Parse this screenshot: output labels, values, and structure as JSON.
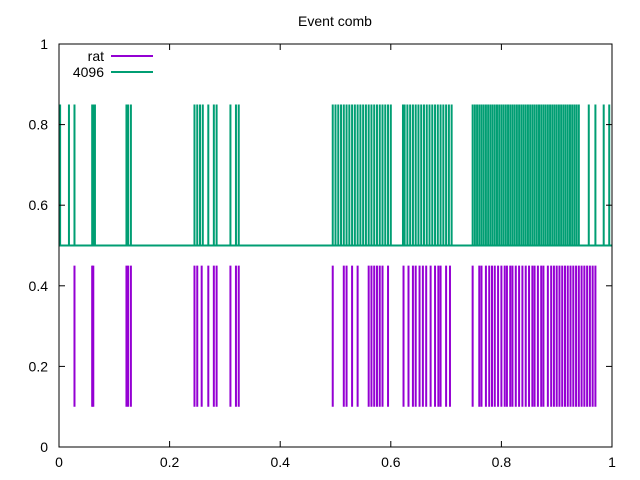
{
  "chart_data": {
    "type": "event-comb",
    "title": "Event comb",
    "xlim": [
      0,
      1
    ],
    "ylim": [
      0,
      1
    ],
    "grid": false,
    "legend_position": "top-left",
    "x_ticks": [
      "0",
      "0.2",
      "0.4",
      "0.6",
      "0.8",
      "1"
    ],
    "y_ticks": [
      "0",
      "0.2",
      "0.4",
      "0.6",
      "0.8",
      "1"
    ],
    "series": [
      {
        "name": "rat",
        "color": "#9400d3",
        "baseline": 0.1,
        "height": 0.45,
        "events": [
          0.028,
          0.06,
          0.062,
          0.122,
          0.125,
          0.13,
          0.245,
          0.25,
          0.258,
          0.27,
          0.28,
          0.285,
          0.31,
          0.32,
          0.325,
          0.495,
          0.515,
          0.52,
          0.53,
          0.54,
          0.56,
          0.565,
          0.57,
          0.575,
          0.58,
          0.585,
          0.595,
          0.623,
          0.632,
          0.64,
          0.645,
          0.652,
          0.658,
          0.664,
          0.672,
          0.68,
          0.686,
          0.69,
          0.7,
          0.707,
          0.748,
          0.76,
          0.764,
          0.772,
          0.778,
          0.783,
          0.788,
          0.794,
          0.8,
          0.806,
          0.81,
          0.816,
          0.82,
          0.826,
          0.832,
          0.838,
          0.844,
          0.85,
          0.856,
          0.86,
          0.866,
          0.872,
          0.876,
          0.884,
          0.89,
          0.895,
          0.9,
          0.905,
          0.91,
          0.915,
          0.92,
          0.925,
          0.93,
          0.935,
          0.94,
          0.945,
          0.95,
          0.955,
          0.96,
          0.965,
          0.97
        ],
        "tall_events": []
      },
      {
        "name": "4096",
        "color": "#009e73",
        "baseline": 0.5,
        "height": 0.85,
        "events": [
          0.002,
          0.018,
          0.028,
          0.06,
          0.062,
          0.065,
          0.122,
          0.125,
          0.13,
          0.245,
          0.25,
          0.255,
          0.26,
          0.27,
          0.28,
          0.285,
          0.31,
          0.32,
          0.325,
          0.495,
          0.5,
          0.505,
          0.51,
          0.515,
          0.52,
          0.525,
          0.53,
          0.535,
          0.54,
          0.545,
          0.55,
          0.555,
          0.56,
          0.565,
          0.57,
          0.575,
          0.58,
          0.585,
          0.59,
          0.595,
          0.6,
          0.622,
          0.625,
          0.63,
          0.635,
          0.64,
          0.645,
          0.65,
          0.655,
          0.66,
          0.665,
          0.67,
          0.675,
          0.68,
          0.685,
          0.69,
          0.695,
          0.7,
          0.705,
          0.71,
          0.748,
          0.752,
          0.756,
          0.76,
          0.764,
          0.768,
          0.772,
          0.776,
          0.78,
          0.784,
          0.788,
          0.792,
          0.796,
          0.8,
          0.804,
          0.808,
          0.812,
          0.816,
          0.82,
          0.824,
          0.828,
          0.832,
          0.836,
          0.84,
          0.844,
          0.848,
          0.852,
          0.856,
          0.86,
          0.864,
          0.868,
          0.872,
          0.876,
          0.88,
          0.884,
          0.888,
          0.892,
          0.896,
          0.9,
          0.904,
          0.908,
          0.912,
          0.916,
          0.92,
          0.924,
          0.928,
          0.932,
          0.936,
          0.94,
          0.958,
          0.97,
          0.985,
          0.995
        ],
        "tall_events": [
          0.062,
          0.13,
          0.255,
          0.655,
          0.94
        ]
      }
    ]
  }
}
